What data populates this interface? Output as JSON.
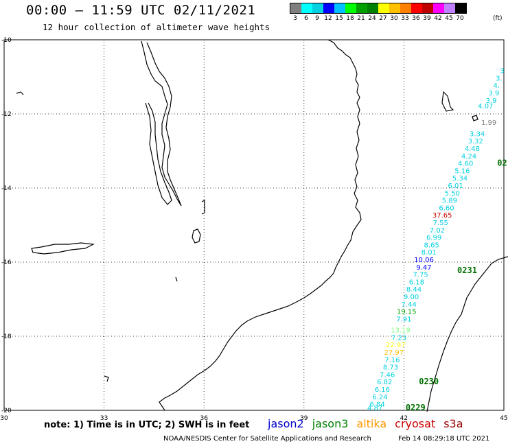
{
  "header": {
    "title": "00:00 – 11:59 UTC 02/11/2021",
    "subtitle": "12 hour collection of altimeter wave heights"
  },
  "colorbar": {
    "labels": [
      "3",
      "6",
      "9",
      "12",
      "15",
      "18",
      "21",
      "24",
      "27",
      "30",
      "33",
      "36",
      "39",
      "42",
      "45",
      "70"
    ],
    "unit": "(ft)",
    "colors": [
      "#7f7f7f",
      "#00ffff",
      "#00d0e0",
      "#0000ff",
      "#00c0ff",
      "#00ff00",
      "#00a000",
      "#008000",
      "#ffff00",
      "#ffc000",
      "#ff8000",
      "#ff0000",
      "#c00000",
      "#ff00ff",
      "#c080ff",
      "#000000"
    ]
  },
  "map": {
    "lat_labels": [
      "-10",
      "-12",
      "-14",
      "-16",
      "-18",
      "-20"
    ],
    "lon_labels": [
      "30",
      "33",
      "36",
      "39",
      "42",
      "45"
    ],
    "swh_points": [
      {
        "v": "3",
        "lon": 44.95,
        "lat": -10.9,
        "c": "#00d0e0"
      },
      {
        "v": "3.",
        "lon": 44.85,
        "lat": -11.1,
        "c": "#00d0e0"
      },
      {
        "v": "4.",
        "lon": 44.78,
        "lat": -11.3,
        "c": "#00d0e0"
      },
      {
        "v": "3.9",
        "lon": 44.7,
        "lat": -11.5,
        "c": "#00d0e0"
      },
      {
        "v": "3.9",
        "lon": 44.62,
        "lat": -11.7,
        "c": "#00d0e0"
      },
      {
        "v": "4.07",
        "lon": 44.45,
        "lat": -11.85,
        "c": "#00d0e0"
      },
      {
        "v": "1.99",
        "lon": 44.55,
        "lat": -12.3,
        "c": "#7f7f7f"
      },
      {
        "v": "3.34",
        "lon": 44.2,
        "lat": -12.6,
        "c": "#00d0e0"
      },
      {
        "v": "3.32",
        "lon": 44.15,
        "lat": -12.8,
        "c": "#00d0e0"
      },
      {
        "v": "4.48",
        "lon": 44.05,
        "lat": -13.0,
        "c": "#00d0e0"
      },
      {
        "v": "4.24",
        "lon": 43.95,
        "lat": -13.2,
        "c": "#00d0e0"
      },
      {
        "v": "4.60",
        "lon": 43.85,
        "lat": -13.4,
        "c": "#00d0e0"
      },
      {
        "v": "5.16",
        "lon": 43.75,
        "lat": -13.6,
        "c": "#00d0e0"
      },
      {
        "v": "5.34",
        "lon": 43.68,
        "lat": -13.8,
        "c": "#00d0e0"
      },
      {
        "v": "6.01",
        "lon": 43.55,
        "lat": -14.0,
        "c": "#00d0e0"
      },
      {
        "v": "5.50",
        "lon": 43.45,
        "lat": -14.2,
        "c": "#00d0e0"
      },
      {
        "v": "5.89",
        "lon": 43.37,
        "lat": -14.4,
        "c": "#00d0e0"
      },
      {
        "v": "6.60",
        "lon": 43.28,
        "lat": -14.6,
        "c": "#00d0e0"
      },
      {
        "v": "37.65",
        "lon": 43.15,
        "lat": -14.8,
        "c": "#c00000"
      },
      {
        "v": "7.55",
        "lon": 43.1,
        "lat": -15.0,
        "c": "#00d0e0"
      },
      {
        "v": "7.02",
        "lon": 43.0,
        "lat": -15.2,
        "c": "#00d0e0"
      },
      {
        "v": "6.99",
        "lon": 42.9,
        "lat": -15.4,
        "c": "#00d0e0"
      },
      {
        "v": "8.65",
        "lon": 42.83,
        "lat": -15.6,
        "c": "#00d0e0"
      },
      {
        "v": "8.01",
        "lon": 42.75,
        "lat": -15.8,
        "c": "#00d0e0"
      },
      {
        "v": "10.06",
        "lon": 42.6,
        "lat": -16.0,
        "c": "#0000ff"
      },
      {
        "v": "9.47",
        "lon": 42.6,
        "lat": -16.2,
        "c": "#0000ff"
      },
      {
        "v": "7.75",
        "lon": 42.5,
        "lat": -16.4,
        "c": "#00d0e0"
      },
      {
        "v": "6.18",
        "lon": 42.38,
        "lat": -16.6,
        "c": "#00d0e0"
      },
      {
        "v": "8.44",
        "lon": 42.3,
        "lat": -16.8,
        "c": "#00d0e0"
      },
      {
        "v": "9.00",
        "lon": 42.22,
        "lat": -17.0,
        "c": "#00d0e0"
      },
      {
        "v": "7.44",
        "lon": 42.15,
        "lat": -17.2,
        "c": "#00d0e0"
      },
      {
        "v": "19.15",
        "lon": 42.08,
        "lat": -17.4,
        "c": "#00a000"
      },
      {
        "v": "7.91",
        "lon": 42.0,
        "lat": -17.6,
        "c": "#00d0e0"
      },
      {
        "v": "13.19",
        "lon": 41.9,
        "lat": -17.9,
        "c": "#80ff80"
      },
      {
        "v": "7.23",
        "lon": 41.85,
        "lat": -18.1,
        "c": "#00d0e0"
      },
      {
        "v": "22.97",
        "lon": 41.75,
        "lat": -18.3,
        "c": "#ffff00"
      },
      {
        "v": "27.97",
        "lon": 41.7,
        "lat": -18.5,
        "c": "#ffc000"
      },
      {
        "v": "7.16",
        "lon": 41.65,
        "lat": -18.7,
        "c": "#00d0e0"
      },
      {
        "v": "8.73",
        "lon": 41.6,
        "lat": -18.9,
        "c": "#00d0e0"
      },
      {
        "v": "7.46",
        "lon": 41.5,
        "lat": -19.1,
        "c": "#00d0e0"
      },
      {
        "v": "6.82",
        "lon": 41.42,
        "lat": -19.3,
        "c": "#00d0e0"
      },
      {
        "v": "6.16",
        "lon": 41.35,
        "lat": -19.5,
        "c": "#00d0e0"
      },
      {
        "v": "6.24",
        "lon": 41.28,
        "lat": -19.7,
        "c": "#00d0e0"
      },
      {
        "v": "6.84",
        "lon": 41.2,
        "lat": -19.9,
        "c": "#00d0e0"
      },
      {
        "v": "4.87",
        "lon": 41.13,
        "lat": -20.0,
        "c": "#00d0e0"
      }
    ],
    "pass_labels": [
      {
        "t": "02",
        "lon": 44.8,
        "lat": -13.4
      },
      {
        "t": "0231",
        "lon": 43.6,
        "lat": -16.3
      },
      {
        "t": "0230",
        "lon": 42.45,
        "lat": -19.3
      },
      {
        "t": "0229",
        "lon": 42.05,
        "lat": -20.0
      }
    ]
  },
  "note": "note: 1) Time is in UTC; 2) SWH is in feet",
  "legend": [
    {
      "name": "jason2",
      "color": "#0000cc"
    },
    {
      "name": "jason3",
      "color": "#008000"
    },
    {
      "name": "altika",
      "color": "#ff9900"
    },
    {
      "name": "cryosat",
      "color": "#cc0000"
    },
    {
      "name": "s3a",
      "color": "#990000"
    }
  ],
  "footer": {
    "credit": "NOAA/NESDIS Center for Satellite Applications and Research",
    "date": "Feb 14 08:29:18 UTC 2021"
  }
}
